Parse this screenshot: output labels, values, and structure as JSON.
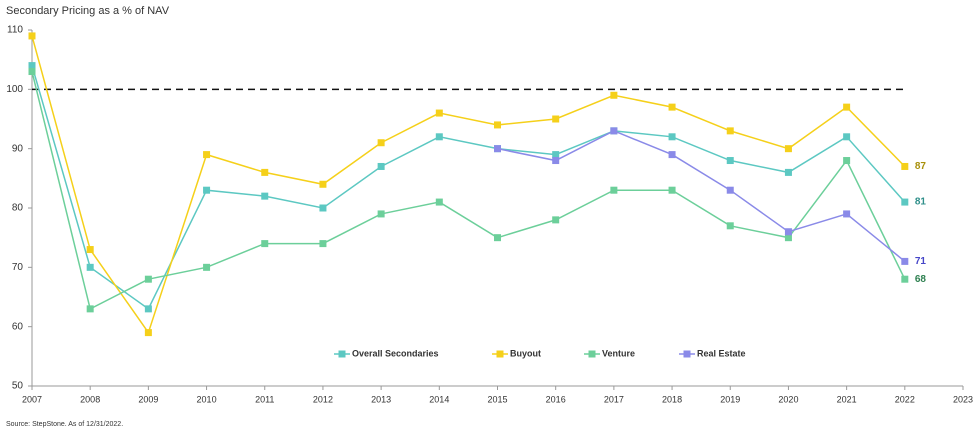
{
  "chart_data": {
    "type": "line",
    "title": "Secondary Pricing as a % of NAV",
    "source": "Source: StepStone. As of 12/31/2022.",
    "x": [
      2007,
      2008,
      2009,
      2010,
      2011,
      2012,
      2013,
      2014,
      2015,
      2016,
      2017,
      2018,
      2019,
      2020,
      2021,
      2022
    ],
    "series": [
      {
        "name": "Overall Secondaries",
        "color": "#5cc8c2",
        "label_color": "#2f8f8a",
        "values": [
          104,
          70,
          63,
          83,
          82,
          80,
          87,
          92,
          90,
          89,
          93,
          92,
          88,
          86,
          92,
          81
        ]
      },
      {
        "name": "Buyout",
        "color": "#f5d01a",
        "label_color": "#a8900a",
        "values": [
          109,
          73,
          59,
          89,
          86,
          84,
          91,
          96,
          94,
          95,
          99,
          97,
          93,
          90,
          97,
          87
        ]
      },
      {
        "name": "Venture",
        "color": "#6ccf9a",
        "label_color": "#2e8050",
        "values": [
          103,
          63,
          68,
          70,
          74,
          74,
          79,
          81,
          75,
          78,
          83,
          83,
          77,
          75,
          88,
          68
        ]
      },
      {
        "name": "Real Estate",
        "color": "#8a8ae8",
        "label_color": "#4545c8",
        "values": [
          null,
          null,
          null,
          null,
          null,
          null,
          null,
          null,
          90,
          88,
          93,
          89,
          83,
          76,
          79,
          71
        ]
      }
    ],
    "reference_line": 100,
    "xlim": [
      2007,
      2023
    ],
    "xticks": [
      2007,
      2008,
      2009,
      2010,
      2011,
      2012,
      2013,
      2014,
      2015,
      2016,
      2017,
      2018,
      2019,
      2020,
      2021,
      2022,
      2023
    ],
    "ylim": [
      50,
      110
    ],
    "yticks": [
      50,
      60,
      70,
      80,
      90,
      100,
      110
    ],
    "grid": false,
    "legend": "lower center"
  }
}
